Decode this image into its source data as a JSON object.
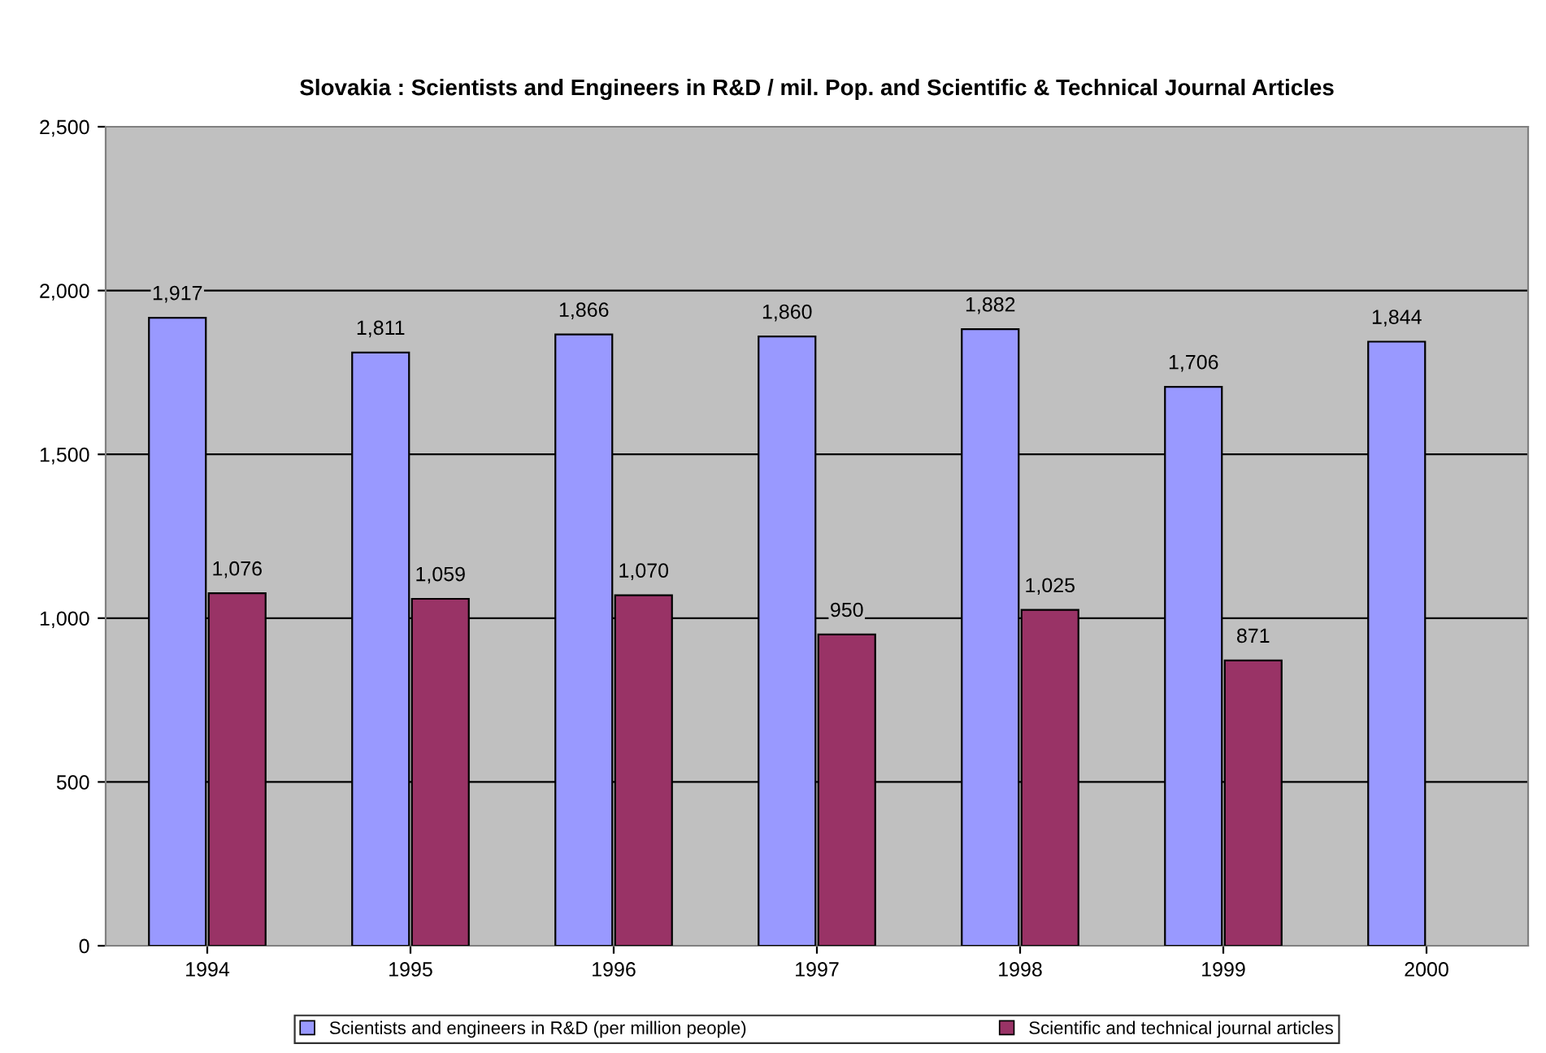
{
  "chart_data": {
    "type": "bar",
    "title": "Slovakia : Scientists and Engineers in R&D / mil. Pop. and Scientific & Technical Journal Articles",
    "categories": [
      "1994",
      "1995",
      "1996",
      "1997",
      "1998",
      "1999",
      "2000"
    ],
    "series": [
      {
        "name": "Scientists and engineers in R&D (per million people)",
        "color": "#9999ff",
        "values": [
          1917,
          1811,
          1866,
          1860,
          1882,
          1706,
          1844
        ],
        "value_labels": [
          "1,917",
          "1,811",
          "1,866",
          "1,860",
          "1,882",
          "1,706",
          "1,844"
        ]
      },
      {
        "name": "Scientific and technical journal articles",
        "color": "#993366",
        "values": [
          1076,
          1059,
          1070,
          950,
          1025,
          871,
          null
        ],
        "value_labels": [
          "1,076",
          "1,059",
          "1,070",
          "950",
          "1,025",
          "871",
          null
        ]
      }
    ],
    "ylim": [
      0,
      2500
    ],
    "yticks": [
      0,
      {
        "value": 500,
        "label": "500"
      },
      {
        "value": 1000,
        "label": "1,000"
      },
      {
        "value": 1500,
        "label": "1,500"
      },
      {
        "value": 2000,
        "label": "2,000"
      },
      {
        "value": 2500,
        "label": "2,500"
      }
    ],
    "grid": "y",
    "legend": "bottom"
  }
}
